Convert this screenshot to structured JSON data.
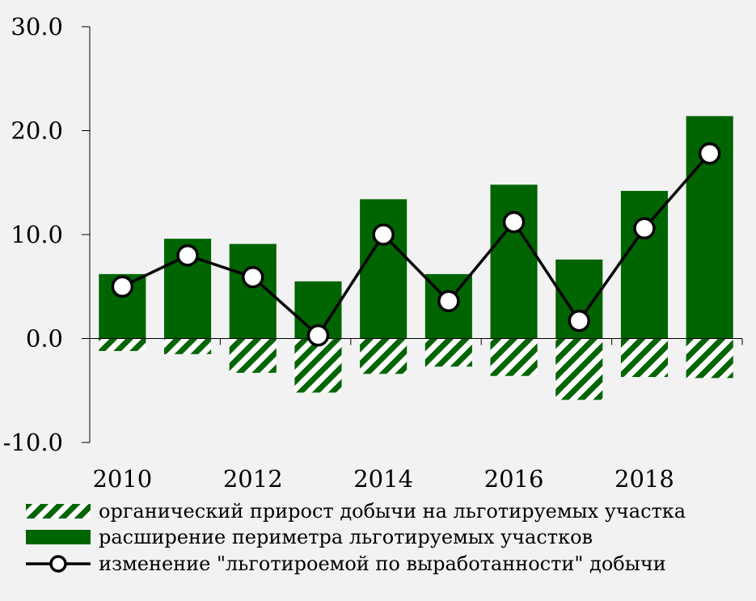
{
  "chart_data": {
    "type": "bar",
    "title": "",
    "xlabel": "",
    "ylabel": "",
    "ylim": [
      -10,
      30
    ],
    "yticks": [
      -10,
      0,
      10,
      20,
      30
    ],
    "ytick_labels": [
      "-10.0",
      "0.0",
      "10.0",
      "20.0",
      "30.0"
    ],
    "categories": [
      "2010",
      "2011",
      "2012",
      "2013",
      "2014",
      "2015",
      "2016",
      "2017",
      "2018",
      "2019"
    ],
    "xtick_labels": [
      "2010",
      "",
      "2012",
      "",
      "2014",
      "",
      "2016",
      "",
      "2018",
      ""
    ],
    "series": [
      {
        "name": "органический прирост добычи на льготируемых участка",
        "kind": "bar-hatched",
        "values": [
          -1.2,
          -1.5,
          -3.3,
          -5.2,
          -3.4,
          -2.7,
          -3.6,
          -5.9,
          -3.7,
          -3.8
        ]
      },
      {
        "name": "расширение периметра льготируемых участков",
        "kind": "bar",
        "values": [
          6.2,
          9.6,
          9.1,
          5.5,
          13.4,
          6.2,
          14.8,
          7.6,
          14.2,
          21.4
        ]
      },
      {
        "name": "изменение \"льготироемой по выработанности\" добычи",
        "kind": "line-markers",
        "values": [
          5.0,
          8.0,
          5.9,
          0.3,
          10.0,
          3.6,
          11.2,
          1.7,
          10.6,
          17.8
        ]
      }
    ],
    "legend_position": "bottom",
    "grid": false,
    "colors": {
      "bar": "#006400",
      "line": "#000000",
      "marker_fill": "#ffffff",
      "background": "#f2f2f2"
    }
  }
}
